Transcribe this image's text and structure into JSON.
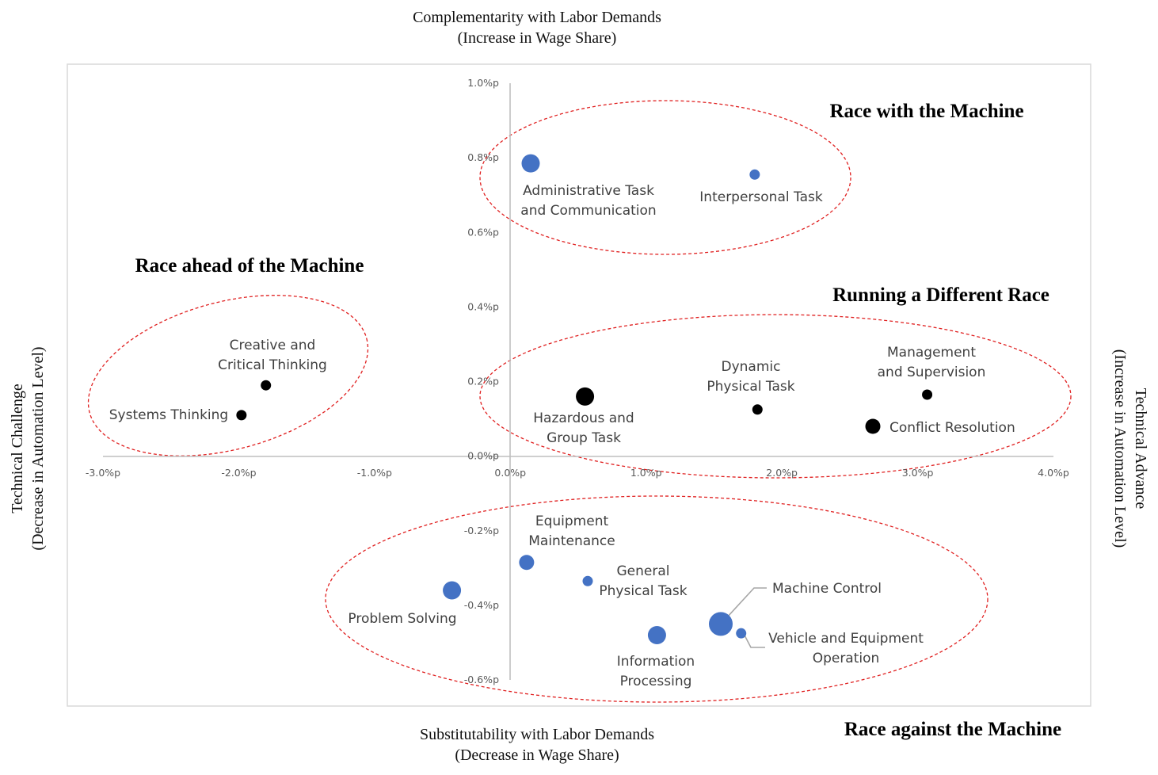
{
  "titles": {
    "top_line1": "Complementarity with Labor Demands",
    "top_line2": "(Increase in Wage Share)",
    "bottom_line1": "Substitutability with Labor Demands",
    "bottom_line2": "(Decrease in Wage Share)",
    "left_line1": "Technical Challenge",
    "left_line2": "(Decrease in Automation Level)",
    "right_line1": "Technical Advance",
    "right_line2": "(Increase in Automation Level)"
  },
  "quadrants": {
    "with": "Race with the Machine",
    "ahead": "Race ahead of the Machine",
    "different": "Running a Different Race",
    "against": "Race against the Machine"
  },
  "colors": {
    "blue": "#4472C4",
    "black": "#000000",
    "ellipse": "#E02020",
    "axis": "#BFBFBF",
    "frame": "#D9D9D9"
  },
  "chart_data": {
    "type": "scatter",
    "xlim": [
      -3.0,
      4.0
    ],
    "ylim": [
      -0.6,
      1.0
    ],
    "x_ticks": [
      {
        "v": -3.0,
        "label": "-3.0%p"
      },
      {
        "v": -2.0,
        "label": "-2.0%p"
      },
      {
        "v": -1.0,
        "label": "-1.0%p"
      },
      {
        "v": 0.0,
        "label": "0.0%p"
      },
      {
        "v": 1.0,
        "label": "1.0%p"
      },
      {
        "v": 2.0,
        "label": "2.0%p"
      },
      {
        "v": 3.0,
        "label": "3.0%p"
      },
      {
        "v": 4.0,
        "label": "4.0%p"
      }
    ],
    "y_ticks": [
      {
        "v": 1.0,
        "label": "1.0%p"
      },
      {
        "v": 0.8,
        "label": "0.8%p"
      },
      {
        "v": 0.6,
        "label": "0.6%p"
      },
      {
        "v": 0.4,
        "label": "0.4%p"
      },
      {
        "v": 0.2,
        "label": "0.2%p"
      },
      {
        "v": 0.0,
        "label": "0.0%p"
      },
      {
        "v": -0.2,
        "label": "-0.2%p"
      },
      {
        "v": -0.4,
        "label": "-0.4%p"
      },
      {
        "v": -0.6,
        "label": "-0.6%p"
      }
    ],
    "points": [
      {
        "label": [
          "Administrative Task",
          "and Communication"
        ],
        "x": 0.15,
        "y": 0.785,
        "size": "large",
        "color": "blue"
      },
      {
        "label": [
          "Interpersonal Task"
        ],
        "x": 1.8,
        "y": 0.755,
        "size": "small",
        "color": "blue"
      },
      {
        "label": [
          "Creative and",
          "Critical Thinking"
        ],
        "x": -1.8,
        "y": 0.19,
        "size": "small",
        "color": "black"
      },
      {
        "label": [
          "Systems Thinking"
        ],
        "x": -1.98,
        "y": 0.11,
        "size": "small",
        "color": "black"
      },
      {
        "label": [
          "Hazardous and",
          "Group Task"
        ],
        "x": 0.55,
        "y": 0.16,
        "size": "large",
        "color": "black"
      },
      {
        "label": [
          "Dynamic",
          "Physical Task"
        ],
        "x": 1.82,
        "y": 0.125,
        "size": "small",
        "color": "black"
      },
      {
        "label": [
          "Management",
          "and Supervision"
        ],
        "x": 3.07,
        "y": 0.165,
        "size": "small",
        "color": "black"
      },
      {
        "label": [
          "Conflict Resolution"
        ],
        "x": 2.67,
        "y": 0.08,
        "size": "medium",
        "color": "black"
      },
      {
        "label": [
          "Equipment",
          "Maintenance"
        ],
        "x": 0.12,
        "y": -0.285,
        "size": "medium",
        "color": "blue"
      },
      {
        "label": [
          "General",
          "Physical Task"
        ],
        "x": 0.57,
        "y": -0.335,
        "size": "small",
        "color": "blue"
      },
      {
        "label": [
          "Problem Solving"
        ],
        "x": -0.43,
        "y": -0.36,
        "size": "large",
        "color": "blue"
      },
      {
        "label": [
          "Machine Control"
        ],
        "x": 1.55,
        "y": -0.45,
        "size": "xlarge",
        "color": "blue"
      },
      {
        "label": [
          "Vehicle and Equipment",
          "Operation"
        ],
        "x": 1.7,
        "y": -0.475,
        "size": "small",
        "color": "blue"
      },
      {
        "label": [
          "Information",
          "Processing"
        ],
        "x": 1.08,
        "y": -0.48,
        "size": "large",
        "color": "blue"
      }
    ]
  }
}
